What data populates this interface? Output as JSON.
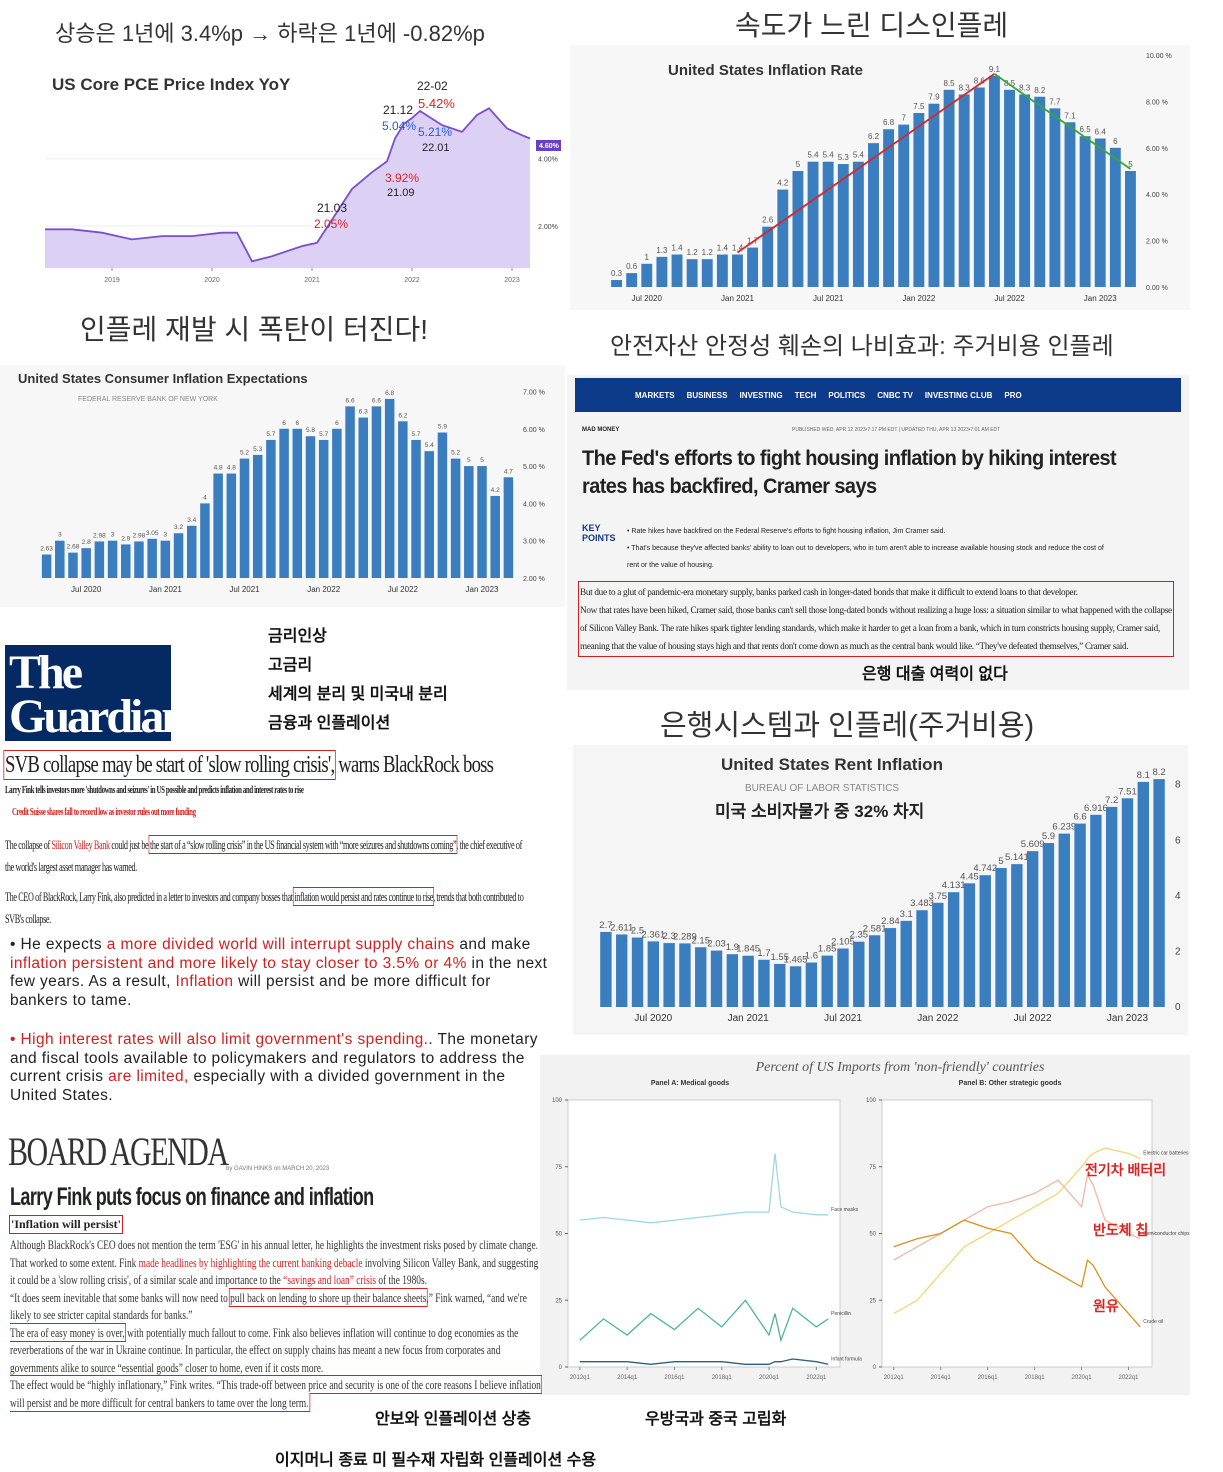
{
  "headings": [
    "상승은 1년에 3.4%p → 하락은 1년에 -0.82%p",
    "속도가 느린 디스인플레",
    "인플레 재발 시 폭탄이 터진다!",
    "안전자산 안정성 훼손의 나비효과: 주거비용 인플레",
    "은행시스템과 인플레(주거비용)"
  ],
  "notes": [
    "금리인상",
    "고금리",
    "세계의 분리 및 미국내 분리",
    "금융과 인플레이션"
  ],
  "captions": [
    "안보와 인플레이션 상충",
    "이지머니 종료 미 필수재 자립화 인플레이션 수용",
    "우방국과 중국 고립화"
  ],
  "imports_title": "Percent of US Imports from 'non-friendly' countries",
  "chart_data": [
    {
      "type": "line",
      "title": "US Core PCE Price Index YoY",
      "color": "#7b4fc9",
      "x": [
        2018.33,
        2018.6,
        2018.9,
        2019.2,
        2019.5,
        2019.8,
        2020.1,
        2020.25,
        2020.4,
        2020.6,
        2020.9,
        2021.05,
        2021.17,
        2021.4,
        2021.6,
        2021.75,
        2021.83,
        2021.92,
        2022.0,
        2022.08,
        2022.3,
        2022.5,
        2022.65,
        2022.77,
        2022.95,
        2023.1,
        2023.18
      ],
      "values": [
        1.9,
        1.9,
        1.8,
        1.6,
        1.7,
        1.7,
        1.8,
        1.8,
        0.95,
        1.1,
        1.4,
        1.5,
        2.05,
        3.1,
        3.6,
        3.92,
        4.6,
        5.04,
        5.21,
        5.42,
        5.0,
        4.8,
        5.3,
        5.5,
        4.9,
        4.7,
        4.6
      ],
      "xlim": [
        2018.33,
        2023.18
      ],
      "xticks": [
        2019,
        2020,
        2021,
        2022,
        2023
      ],
      "ylim": [
        0.75,
        6.4
      ],
      "yticks": [
        {
          "value": 2,
          "label": "2.00%"
        },
        {
          "value": 4,
          "label": "4.00%"
        }
      ],
      "annotations": [
        "22-02",
        "21.12",
        "5.42%",
        "5.04%",
        "5.21%",
        "22.01",
        "3.92%",
        "21.09",
        "21.03",
        "2.05%",
        "4.60%"
      ]
    },
    {
      "type": "bar",
      "title": "United States Inflation Rate",
      "color": "#3a7ebf",
      "categories": [
        null,
        null,
        "Jul 2020",
        null,
        null,
        null,
        null,
        null,
        "Jan 2021",
        null,
        null,
        null,
        null,
        null,
        "Jul 2021",
        null,
        null,
        null,
        null,
        null,
        "Jan 2022",
        null,
        null,
        null,
        null,
        null,
        "Jul 2022",
        null,
        null,
        null,
        null,
        null,
        "Jan 2023",
        null,
        null
      ],
      "values": [
        0.3,
        0.6,
        1.0,
        1.3,
        1.4,
        1.2,
        1.2,
        1.4,
        1.4,
        1.7,
        2.6,
        4.2,
        5.0,
        5.4,
        5.4,
        5.3,
        5.4,
        6.2,
        6.8,
        7.0,
        7.5,
        7.9,
        8.5,
        8.3,
        8.6,
        9.1,
        8.5,
        8.3,
        8.2,
        7.7,
        7.1,
        6.5,
        6.4,
        6.0,
        5.0
      ],
      "ylim": [
        0,
        10
      ],
      "yticks": [
        {
          "value": 0,
          "label": "0.00 %"
        },
        {
          "value": 2,
          "label": "2.00 %"
        },
        {
          "value": 4,
          "label": "4.00 %"
        },
        {
          "value": 6,
          "label": "6.00 %"
        },
        {
          "value": 8,
          "label": "8.00 %"
        },
        {
          "value": 10,
          "label": "10.00 %"
        }
      ]
    },
    {
      "type": "bar",
      "title": "United States Consumer Inflation Expectations",
      "subtitle": "FEDERAL RESERVE BANK OF NEW YORK",
      "color": "#3a7ebf",
      "categories": [
        null,
        null,
        null,
        "Jul 2020",
        null,
        null,
        null,
        null,
        null,
        "Jan 2021",
        null,
        null,
        null,
        null,
        null,
        "Jul 2021",
        null,
        null,
        null,
        null,
        null,
        "Jan 2022",
        null,
        null,
        null,
        null,
        null,
        "Jul 2022",
        null,
        null,
        null,
        null,
        null,
        "Jan 2023",
        null,
        null
      ],
      "values": [
        2.63,
        3.0,
        2.68,
        2.8,
        2.98,
        3.0,
        2.9,
        2.98,
        3.05,
        3.0,
        3.2,
        3.4,
        4.0,
        4.8,
        4.8,
        5.2,
        5.3,
        5.7,
        6.0,
        6.0,
        5.8,
        5.7,
        6.0,
        6.6,
        6.3,
        6.6,
        6.8,
        6.2,
        5.7,
        5.4,
        5.9,
        5.2,
        5.0,
        5.0,
        4.2,
        4.7
      ],
      "ylim": [
        2,
        7.2
      ],
      "yticks": [
        {
          "value": 2,
          "label": "2.00 %"
        },
        {
          "value": 3,
          "label": "3.00 %"
        },
        {
          "value": 4,
          "label": "4.00 %"
        },
        {
          "value": 5,
          "label": "5.00 %"
        },
        {
          "value": 6,
          "label": "6.00 %"
        },
        {
          "value": 7,
          "label": "7.00 %"
        }
      ]
    },
    {
      "type": "bar",
      "title": "United States Rent Inflation",
      "subtitle": "BUREAU OF LABOR STATISTICS",
      "annotation": "미국 소비자물가 중 32% 차지",
      "color": "#3a7ebf",
      "categories": [
        null,
        null,
        null,
        "Jul 2020",
        null,
        null,
        null,
        null,
        null,
        "Jan 2021",
        null,
        null,
        null,
        null,
        null,
        "Jul 2021",
        null,
        null,
        null,
        null,
        null,
        "Jan 2022",
        null,
        null,
        null,
        null,
        null,
        "Jul 2022",
        null,
        null,
        null,
        null,
        null,
        "Jan 2023",
        null,
        null
      ],
      "values": [
        2.7,
        2.611,
        2.5,
        2.361,
        2.3,
        2.289,
        2.15,
        2.03,
        1.9,
        1.845,
        1.7,
        1.55,
        1.465,
        1.6,
        1.85,
        2.105,
        2.35,
        2.581,
        2.84,
        3.1,
        3.483,
        3.75,
        4.131,
        4.45,
        4.742,
        5.0,
        5.141,
        5.609,
        5.9,
        6.239,
        6.6,
        6.916,
        7.2,
        7.51,
        8.1,
        8.2
      ],
      "ylim": [
        0,
        8.6
      ],
      "yticks": [
        0,
        2,
        4,
        6,
        8
      ]
    },
    {
      "type": "line",
      "title": "Panel A: Medical goods",
      "x": [
        2012,
        2013,
        2014,
        2015,
        2016,
        2017,
        2018,
        2019,
        2020,
        2020.25,
        2020.5,
        2021,
        2022,
        2022.5
      ],
      "xlim": [
        2011.5,
        2023
      ],
      "xticks": [
        {
          "value": 2012,
          "label": "2012q1"
        },
        {
          "value": 2014,
          "label": "2014q1"
        },
        {
          "value": 2016,
          "label": "2016q1"
        },
        {
          "value": 2018,
          "label": "2018q1"
        },
        {
          "value": 2020,
          "label": "2020q1"
        },
        {
          "value": 2022,
          "label": "2022q1"
        }
      ],
      "ylim": [
        0,
        100
      ],
      "yticks": [
        0,
        25,
        50,
        75,
        100
      ],
      "series": [
        {
          "name": "Face masks",
          "color": "#9fd6e4",
          "values": [
            55,
            56,
            55,
            54,
            55,
            56,
            57,
            58,
            58,
            80,
            60,
            58,
            57,
            57
          ]
        },
        {
          "name": "Penicillin",
          "color": "#4fb39a",
          "values": [
            10,
            18,
            12,
            20,
            14,
            22,
            15,
            25,
            12,
            20,
            10,
            22,
            15,
            18
          ]
        },
        {
          "name": "Infant formula",
          "color": "#2a5f80",
          "values": [
            2,
            2,
            2,
            1,
            2,
            2,
            2,
            1,
            1,
            2,
            2,
            3,
            2,
            1
          ]
        }
      ]
    },
    {
      "type": "line",
      "title": "Panel B: Other strategic goods",
      "x": [
        2012,
        2013,
        2014,
        2015,
        2016,
        2017,
        2018,
        2019,
        2020,
        2020.25,
        2020.5,
        2021,
        2022,
        2022.5
      ],
      "xlim": [
        2011.5,
        2023
      ],
      "xticks": [
        {
          "value": 2012,
          "label": "2012q1"
        },
        {
          "value": 2014,
          "label": "2014q1"
        },
        {
          "value": 2016,
          "label": "2016q1"
        },
        {
          "value": 2018,
          "label": "2018q1"
        },
        {
          "value": 2020,
          "label": "2020q1"
        },
        {
          "value": 2022,
          "label": "2022q1"
        }
      ],
      "ylim": [
        0,
        100
      ],
      "yticks": [
        0,
        25,
        50,
        75,
        100
      ],
      "series": [
        {
          "name": "Electric car batteries",
          "color": "#f2d770",
          "values": [
            20,
            25,
            35,
            45,
            50,
            55,
            60,
            65,
            75,
            78,
            80,
            82,
            80,
            78
          ]
        },
        {
          "name": "Semiconductor chips",
          "color": "#f0b8a0",
          "values": [
            40,
            45,
            50,
            55,
            60,
            62,
            65,
            70,
            60,
            72,
            68,
            55,
            50,
            48
          ]
        },
        {
          "name": "Crude oil",
          "color": "#d9901c",
          "values": [
            45,
            48,
            50,
            55,
            52,
            50,
            40,
            35,
            30,
            40,
            38,
            30,
            20,
            15
          ]
        }
      ],
      "annotations": [
        "전기차 배터리",
        "반도체 칩",
        "원유"
      ]
    }
  ],
  "cnbc": {
    "nav": [
      "MARKETS",
      "BUSINESS",
      "INVESTING",
      "TECH",
      "POLITICS",
      "CNBC TV",
      "INVESTING CLUB",
      "PRO"
    ],
    "section": "MAD MONEY",
    "dateline": "PUBLISHED WED, APR 12 2023•7:17 PM EDT | UPDATED THU, APR 13 2023•7:01 AM EDT",
    "headline": "The Fed's efforts to fight housing inflation by hiking interest rates has backfired, Cramer says",
    "key_points_label": "KEY POINTS",
    "key_points": [
      "Rate hikes have backfired on the Federal Reserve's efforts to fight housing inflation, Jim Cramer said.",
      "That's because they've affected banks' ability to loan out to developers, who in turn aren't able to increase available housing stock and reduce the cost of rent or the value of housing."
    ],
    "body": [
      "But due to a glut of pandemic-era monetary supply, banks parked cash in longer-dated bonds that make it difficult to extend loans to that developer.",
      "Now that rates have been hiked, Cramer said, those banks can't sell those long-dated bonds without realizing a huge loss: a situation similar to what happened with the collapse of Silicon Valley Bank. The rate hikes spark tighter lending standards, which make it harder to get a loan from a bank, which in turn constricts housing supply, Cramer said, meaning that the value of housing stays high and that rents don't come down as much as the central bank would like. “They've defeated themselves,” Cramer said."
    ],
    "note": "은행 대출 여력이 없다"
  },
  "guardian": {
    "logo": [
      "The",
      "Guardian"
    ],
    "headline": [
      "SVB collapse may be start of 'slow rolling crisis',",
      " warns BlackRock boss"
    ],
    "standfirst": "Larry Fink tells investors more 'shutdowns and seizures' in US possible and predicts inflation and interest rates to rise",
    "related": "Credit Suisse shares fall to record low as investor rules out more funding",
    "paragraphs": [
      [
        "The collapse of ",
        "Silicon Valley Bank",
        " could just be ",
        "the start of a “slow rolling crisis” in the US financial system with “more seizures and shutdowns coming”",
        ", the chief executive of the world's largest asset manager has warned."
      ],
      [
        "The CEO of BlackRock, Larry Fink, also predicted in a letter to investors and company bosses that ",
        "inflation would persist and rates continue to rise",
        ", trends that both contributed to SVB's collapse."
      ]
    ],
    "bullets": [
      [
        "He expects ",
        "a more divided world will interrupt supply chains",
        " and make ",
        "inflation persistent and more likely to stay closer to 3.5% or 4%",
        " in the next few years. As a result, ",
        "Inflation",
        " will persist and be more difficult for bankers to tame."
      ],
      [
        "High interest rates will also limit government's spending.",
        ". The monetary and fiscal tools available to policymakers and regulators to address the current crisis ",
        "are limited,",
        " especially with a divided government in the United States."
      ]
    ]
  },
  "board_agenda": {
    "logo": "BOARD AGENDA",
    "byline": "by GAVIN HINKS on MARCH 20, 2023",
    "headline": "Larry Fink puts focus on finance and inflation",
    "kicker": "'Inflation will persist'",
    "paragraphs": [
      [
        "Although BlackRock's CEO does not mention the term 'ESG' in his annual letter, he highlights the investment risks posed by climate change."
      ],
      [
        "That worked to some extent. Fink ",
        "made headlines by highlighting the current banking debacle",
        " involving Silicon Valley Bank, and suggesting it could be a 'slow rolling crisis', of a similar scale and importance to the ",
        "“savings and loan” crisis",
        " of the 1980s."
      ],
      [
        "“It does seem inevitable that some banks will now need to ",
        "pull back on lending to shore up their balance sheets",
        ",” Fink warned, “and we're likely to see stricter capital standards for banks.”"
      ],
      [
        "The era of easy money is over,",
        " with potentially much fallout to come. Fink also believes inflation will continue to dog economies as the reverberations of the war in Ukraine continue. In particular, the effect on supply chains has meant a new focus from corporates and governments alike to source “essential goods” closer to home, even if it costs more."
      ],
      [
        "The effect would be “highly inflationary,” Fink writes. “This trade-off between price and security is one of the core reasons I believe inflation will persist and be more difficult for central bankers to tame over the long term."
      ]
    ]
  }
}
